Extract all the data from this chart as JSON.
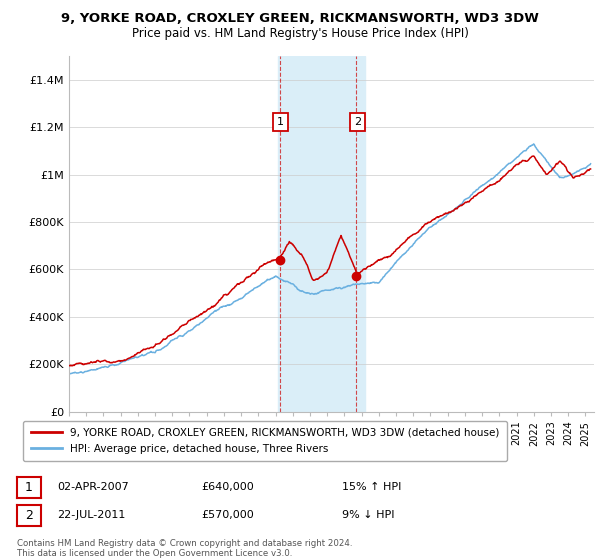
{
  "title1": "9, YORKE ROAD, CROXLEY GREEN, RICKMANSWORTH, WD3 3DW",
  "title2": "Price paid vs. HM Land Registry's House Price Index (HPI)",
  "legend1": "9, YORKE ROAD, CROXLEY GREEN, RICKMANSWORTH, WD3 3DW (detached house)",
  "legend2": "HPI: Average price, detached house, Three Rivers",
  "trans1_num": "1",
  "trans1_date": "02-APR-2007",
  "trans1_price": "£640,000",
  "trans1_hpi": "15% ↑ HPI",
  "trans2_num": "2",
  "trans2_date": "22-JUL-2011",
  "trans2_price": "£570,000",
  "trans2_hpi": "9% ↓ HPI",
  "footer": "Contains HM Land Registry data © Crown copyright and database right 2024.\nThis data is licensed under the Open Government Licence v3.0.",
  "sale1_year": 2007.25,
  "sale1_price": 640000,
  "sale2_year": 2011.7,
  "sale2_price": 570000,
  "hpi_color": "#6ab0e0",
  "price_color": "#cc0000",
  "highlight_color": "#daeef8",
  "box_color": "#cc0000",
  "ylim_max": 1500000,
  "xlim_start": 1995.0,
  "xlim_end": 2025.5,
  "yticks": [
    0,
    200000,
    400000,
    600000,
    800000,
    1000000,
    1200000,
    1400000
  ],
  "ylabels": [
    "£0",
    "£200K",
    "£400K",
    "£600K",
    "£800K",
    "£1M",
    "£1.2M",
    "£1.4M"
  ]
}
